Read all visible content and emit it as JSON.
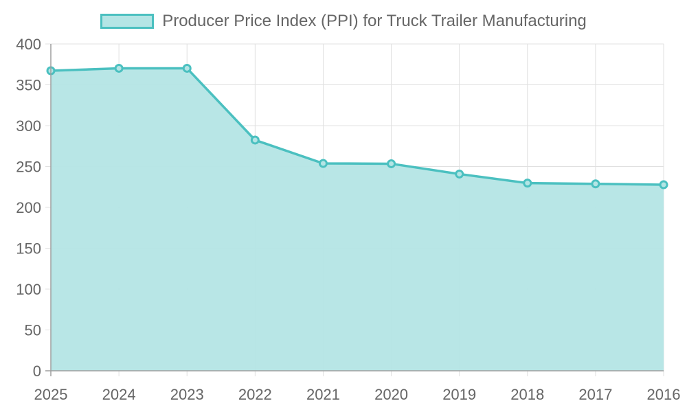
{
  "chart_data": {
    "type": "line",
    "filled": true,
    "title": "",
    "legend": [
      {
        "label": "Producer Price Index (PPI) for Truck Trailer Manufacturing",
        "color": "#4bc0c0",
        "fill": "#b4e5e5"
      }
    ],
    "legend_position": "top",
    "categories": [
      "2025",
      "2024",
      "2023",
      "2022",
      "2021",
      "2020",
      "2019",
      "2018",
      "2017",
      "2016"
    ],
    "series": [
      {
        "name": "Producer Price Index (PPI) for Truck Trailer Manufacturing",
        "values": [
          367.2,
          370.2,
          370.2,
          282.4,
          253.8,
          253.4,
          240.8,
          229.7,
          228.8,
          227.7
        ]
      }
    ],
    "xlabel": "",
    "ylabel": "",
    "ylim": [
      0,
      400
    ],
    "yticks": [
      0,
      50,
      100,
      150,
      200,
      250,
      300,
      350,
      400
    ],
    "grid": true,
    "colors": {
      "line": "#4bc0c0",
      "fill": "#b4e5e5",
      "grid": "#e0e0e0",
      "axis": "#9e9e9e",
      "text": "#666666"
    }
  }
}
